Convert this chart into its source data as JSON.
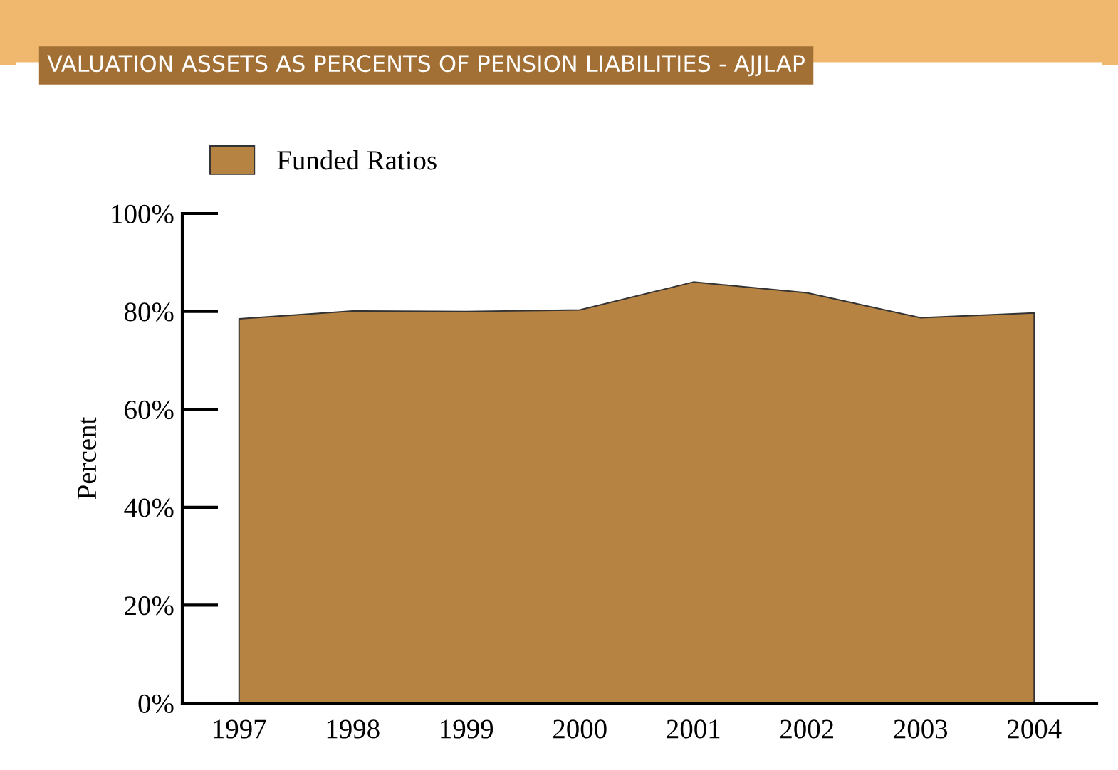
{
  "chart_data": {
    "type": "area",
    "title": "VALUATION ASSETS AS PERCENTS OF PENSION LIABILITIES - AJJLAP",
    "ylabel": "Percent",
    "categories": [
      "1997",
      "1998",
      "1999",
      "2000",
      "2001",
      "2002",
      "2003",
      "2004"
    ],
    "series": [
      {
        "name": "Funded Ratios",
        "color": "#b78342",
        "values": [
          78.5,
          80.1,
          80.0,
          80.3,
          86.0,
          83.8,
          78.7,
          79.7
        ]
      }
    ],
    "ylim": [
      0,
      100
    ],
    "yticks": [
      {
        "value": 0,
        "label": "0%"
      },
      {
        "value": 20,
        "label": "20%"
      },
      {
        "value": 40,
        "label": "40%"
      },
      {
        "value": 60,
        "label": "60%"
      },
      {
        "value": 80,
        "label": "80%"
      },
      {
        "value": 100,
        "label": "100%"
      }
    ],
    "legend": "top left",
    "grid": false
  }
}
